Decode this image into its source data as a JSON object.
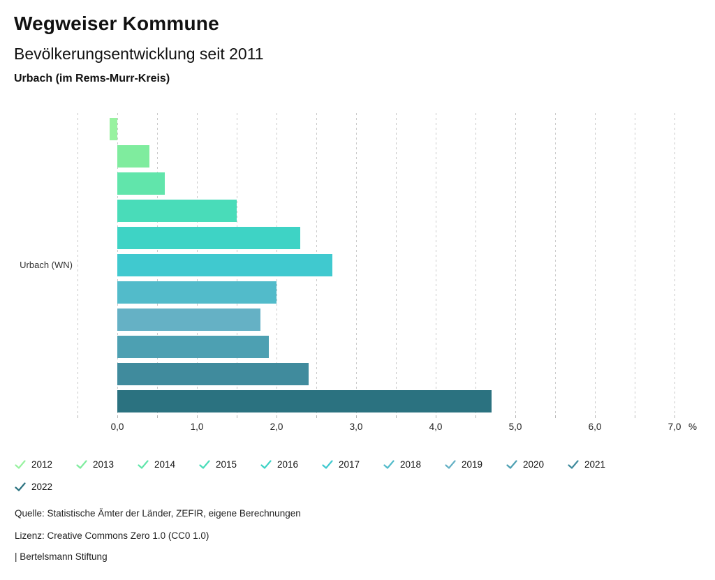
{
  "header": {
    "title": "Wegweiser Kommune",
    "subtitle": "Bevölkerungsentwicklung seit 2011",
    "location": "Urbach (im Rems-Murr-Kreis)"
  },
  "chart_data": {
    "type": "bar",
    "orientation": "horizontal",
    "group_label": "Urbach (WN)",
    "series": [
      {
        "name": "2012",
        "value": -0.1,
        "color": "#98F2A0"
      },
      {
        "name": "2013",
        "value": 0.4,
        "color": "#7FEC9E"
      },
      {
        "name": "2014",
        "value": 0.6,
        "color": "#61E5AB"
      },
      {
        "name": "2015",
        "value": 1.5,
        "color": "#49DCB9"
      },
      {
        "name": "2016",
        "value": 2.3,
        "color": "#3ED3C5"
      },
      {
        "name": "2017",
        "value": 2.7,
        "color": "#40C9CF"
      },
      {
        "name": "2018",
        "value": 2.0,
        "color": "#52BBCA"
      },
      {
        "name": "2019",
        "value": 1.8,
        "color": "#65B1C5"
      },
      {
        "name": "2020",
        "value": 1.9,
        "color": "#4DA0B2"
      },
      {
        "name": "2021",
        "value": 2.4,
        "color": "#408B9D"
      },
      {
        "name": "2022",
        "value": 4.7,
        "color": "#2B7280"
      }
    ],
    "x_ticks": [
      "0,0",
      "1,0",
      "2,0",
      "3,0",
      "4,0",
      "5,0",
      "6,0",
      "7,0"
    ],
    "x_unit": "%",
    "xlim": [
      -0.5,
      7.0
    ],
    "gridline_step": 0.5,
    "grid": true,
    "legend_position": "bottom",
    "legend_rows": [
      [
        "2012",
        "2013",
        "2014",
        "2015",
        "2016",
        "2017",
        "2018",
        "2019",
        "2020",
        "2021"
      ],
      [
        "2022"
      ]
    ]
  },
  "footer": {
    "source": "Quelle: Statistische Ämter der Länder, ZEFIR, eigene Berechnungen",
    "license": "Lizenz: Creative Commons Zero 1.0 (CC0 1.0)",
    "attribution": "| Bertelsmann Stiftung"
  }
}
